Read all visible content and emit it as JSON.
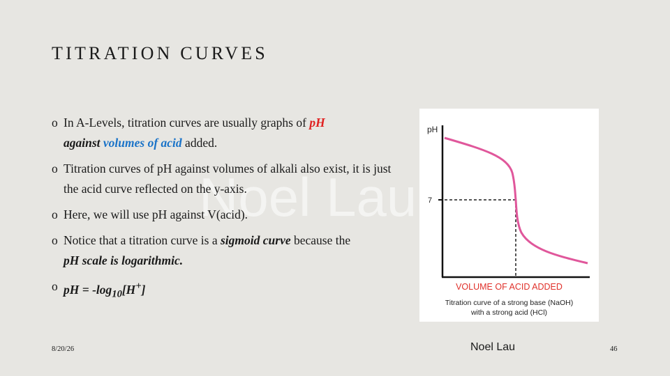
{
  "slide": {
    "title": "TITRATION CURVES",
    "watermark": "Noel Lau",
    "bullet_marker": "o",
    "bullets": {
      "b1": {
        "t1": "In A-Levels, titration curves are usually graphs of ",
        "t2": "pH",
        "t3": "against",
        "t4": "volumes of acid",
        "t5": " added."
      },
      "b2": {
        "t1": "Titration curves of pH against volumes of alkali also exist, it is just the acid curve reflected on the y-axis."
      },
      "b3": {
        "t1": "Here, we will use pH against V(acid)."
      },
      "b4": {
        "t1": "Notice that a titration curve is a ",
        "t2": "sigmoid curve",
        "t3": " because the ",
        "t4": "pH scale is logarithmic."
      },
      "b5": {
        "t1": "pH = -log",
        "t2": "10",
        "t3": "[H",
        "t4": "+",
        "t5": "]"
      }
    },
    "colors": {
      "red": "#e02020",
      "blue": "#1a73c8",
      "curve": "#e0579b"
    }
  },
  "figure": {
    "y_axis_label": "pH",
    "tick_label": "7",
    "x_axis_label": "VOLUME OF ACID ADDED",
    "caption_line1": "Titration curve of a strong base (NaOH)",
    "caption_line2": "with a strong acid (HCl)"
  },
  "footer": {
    "date": "8/20/26",
    "author": "Noel Lau",
    "page": "46"
  }
}
